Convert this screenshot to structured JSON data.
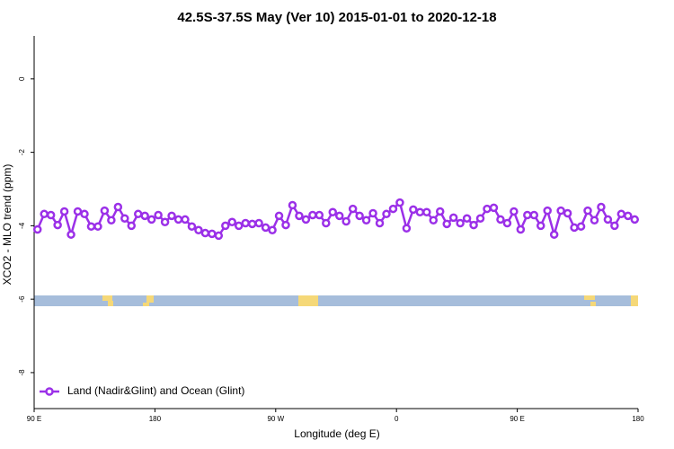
{
  "chart_data": {
    "type": "line",
    "title": "42.5S-37.5S May (Ver 10)   2015-01-01 to 2020-12-18",
    "x_label": "Longitude (deg E)",
    "y_label": "XCO2 - MLO trend (ppm)",
    "x": [
      92.5,
      97.5,
      102.5,
      107.5,
      112.5,
      117.5,
      122.5,
      127.5,
      132.5,
      137.5,
      142.5,
      147.5,
      152.5,
      157.5,
      162.5,
      167.5,
      172.5,
      177.5,
      182.5,
      187.5,
      192.5,
      197.5,
      202.5,
      207.5,
      212.5,
      217.5,
      222.5,
      227.5,
      232.5,
      237.5,
      242.5,
      247.5,
      252.5,
      257.5,
      262.5,
      267.5,
      272.5,
      277.5,
      282.5,
      287.5,
      292.5,
      297.5,
      302.5,
      307.5,
      312.5,
      317.5,
      322.5,
      327.5,
      332.5,
      337.5,
      342.5,
      347.5,
      352.5,
      357.5,
      362.5,
      367.5,
      372.5,
      377.5,
      382.5,
      387.5,
      392.5,
      397.5,
      402.5,
      407.5,
      412.5,
      417.5,
      422.5,
      427.5,
      432.5,
      437.5,
      442.5,
      447.5,
      452.5,
      457.5,
      462.5,
      467.5,
      472.5,
      477.5,
      482.5,
      487.5,
      492.5,
      497.5,
      502.5,
      507.5,
      512.5,
      517.5,
      522.5,
      527.5,
      532.5,
      537.5
    ],
    "series": [
      {
        "name": "Land (Nadir&Glint) and Ocean (Glint)",
        "color": "#9b30e8",
        "values": [
          -4.1,
          -3.68,
          -3.71,
          -3.98,
          -3.61,
          -4.24,
          -3.61,
          -3.68,
          -4.02,
          -4.02,
          -3.59,
          -3.85,
          -3.49,
          -3.8,
          -4.0,
          -3.68,
          -3.73,
          -3.83,
          -3.71,
          -3.9,
          -3.73,
          -3.83,
          -3.83,
          -4.02,
          -4.12,
          -4.2,
          -4.22,
          -4.27,
          -4.0,
          -3.9,
          -4.0,
          -3.93,
          -3.95,
          -3.93,
          -4.05,
          -4.12,
          -3.73,
          -3.98,
          -3.44,
          -3.73,
          -3.83,
          -3.71,
          -3.71,
          -3.93,
          -3.63,
          -3.73,
          -3.88,
          -3.54,
          -3.73,
          -3.85,
          -3.66,
          -3.93,
          -3.68,
          -3.54,
          -3.37,
          -4.07,
          -3.56,
          -3.63,
          -3.63,
          -3.85,
          -3.61,
          -3.95,
          -3.78,
          -3.93,
          -3.8,
          -3.98,
          -3.8,
          -3.54,
          -3.51,
          -3.83,
          -3.93,
          -3.61,
          -4.1,
          -3.71,
          -3.71,
          -4.0,
          -3.59,
          -4.24,
          -3.59,
          -3.66,
          -4.05,
          -4.02,
          -3.59,
          -3.85,
          -3.49,
          -3.83,
          -4.0,
          -3.68,
          -3.73,
          -3.83
        ]
      }
    ],
    "xlim": [
      90,
      540
    ],
    "xticks": [
      {
        "value": 90,
        "label": "90 E"
      },
      {
        "value": 180,
        "label": "180"
      },
      {
        "value": 270,
        "label": "90 W"
      },
      {
        "value": 360,
        "label": "0"
      },
      {
        "value": 450,
        "label": "90 E"
      },
      {
        "value": 540,
        "label": "180"
      }
    ],
    "ylim": [
      -8.98,
      1.17
    ],
    "yticks": [
      0,
      -2,
      -4,
      -6,
      -8
    ],
    "legend": "bottom-left"
  }
}
